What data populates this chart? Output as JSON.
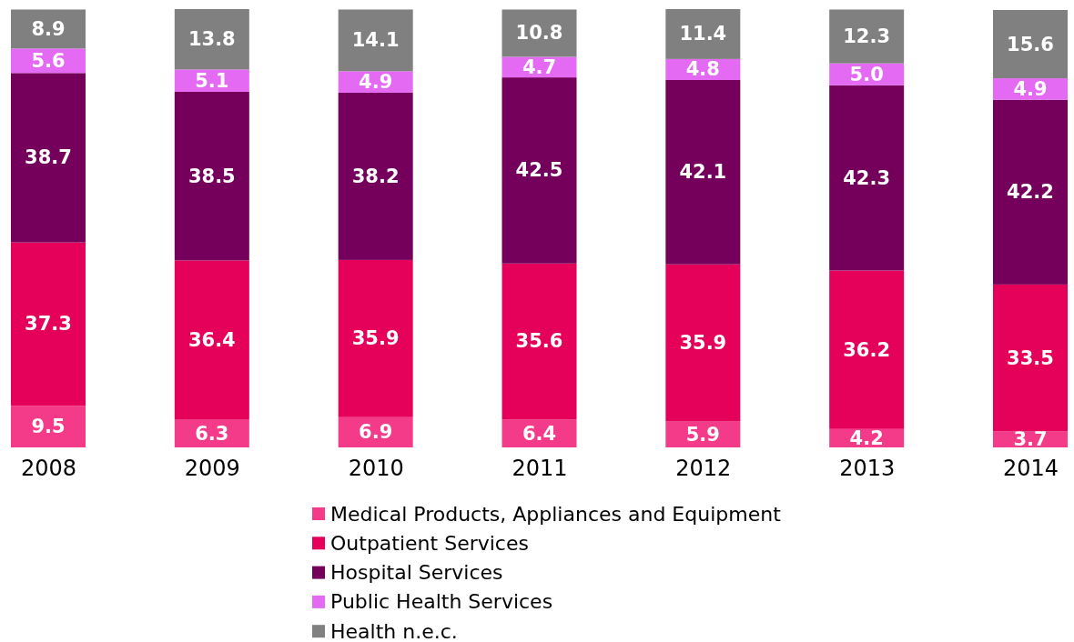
{
  "chart_data": {
    "type": "bar",
    "stacked": true,
    "legend": "bottom",
    "categories": [
      "2008",
      "2009",
      "2010",
      "2011",
      "2012",
      "2013",
      "2014"
    ],
    "series": [
      {
        "name": "Medical Products, Appliances and Equipment",
        "color": "#f33b8a",
        "values": [
          9.5,
          6.3,
          6.9,
          6.4,
          5.9,
          4.2,
          3.7
        ],
        "value_labels": [
          "9.5",
          "6.3",
          "6.9",
          "6.4",
          "5.9",
          "4.2",
          "3.7"
        ]
      },
      {
        "name": "Outpatient Services",
        "color": "#e5005a",
        "values": [
          37.3,
          36.4,
          35.9,
          35.6,
          35.9,
          36.2,
          33.5
        ],
        "value_labels": [
          "37.3",
          "36.4",
          "35.9",
          "35.6",
          "35.9",
          "36.2",
          "33.5"
        ]
      },
      {
        "name": "Hospital Services",
        "color": "#74005b",
        "values": [
          38.7,
          38.5,
          38.2,
          42.5,
          42.1,
          42.3,
          42.2
        ],
        "value_labels": [
          "38.7",
          "38.5",
          "38.2",
          "42.5",
          "42.1",
          "42.3",
          "42.2"
        ]
      },
      {
        "name": "Public Health Services",
        "color": "#e46af4",
        "values": [
          5.6,
          5.1,
          4.9,
          4.7,
          4.8,
          5.0,
          4.9
        ],
        "value_labels": [
          "5.6",
          "5.1",
          "4.9",
          "4.7",
          "4.8",
          "5.0",
          "4.9"
        ]
      },
      {
        "name": "Health n.e.c.",
        "color": "#808080",
        "values": [
          8.9,
          13.8,
          14.1,
          10.8,
          11.4,
          12.3,
          15.6
        ],
        "value_labels": [
          "8.9",
          "13.8",
          "14.1",
          "10.8",
          "11.4",
          "12.3",
          "15.6"
        ]
      }
    ]
  }
}
